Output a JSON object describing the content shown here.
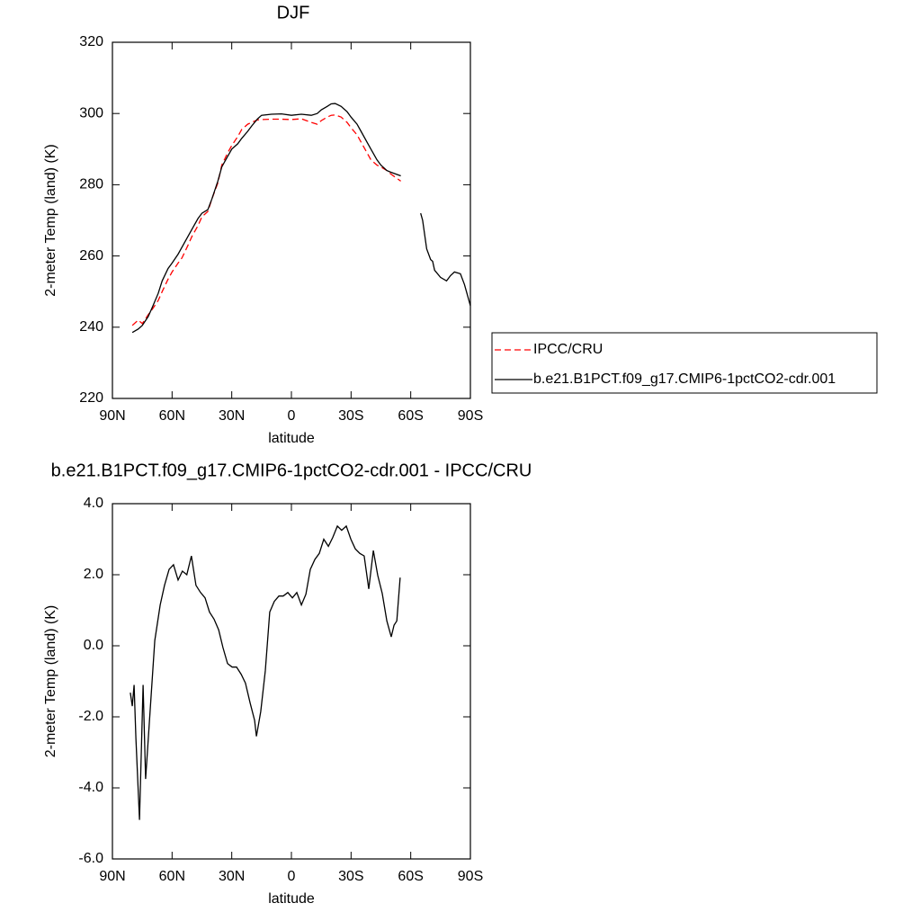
{
  "chart_data": [
    {
      "type": "line",
      "title": "DJF",
      "xlabel": "latitude",
      "ylabel": "2-meter Temp (land) (K)",
      "x": [
        80,
        77,
        75,
        72,
        70,
        67,
        65,
        62,
        60,
        57,
        55,
        52,
        50,
        47,
        45,
        42,
        40,
        37,
        35,
        32,
        30,
        27,
        25,
        22,
        20,
        17,
        15,
        10,
        5,
        0,
        -5,
        -10,
        -13,
        -15,
        -18,
        -20,
        -22,
        -25,
        -28,
        -30,
        -33,
        -35,
        -38,
        -40,
        -43,
        -45,
        -48,
        -50,
        -55,
        -60,
        -65,
        -66,
        -68,
        -70,
        -71,
        -72,
        -75,
        -78,
        -80,
        -82,
        -85,
        -87,
        -89,
        -90
      ],
      "series": [
        {
          "name": "IPCC/CRU",
          "color": "#ff0000",
          "line_style": "dashed",
          "values": [
            240.5,
            242,
            241,
            243.5,
            245,
            247.5,
            250,
            253.5,
            255.5,
            258,
            259.5,
            263,
            265.5,
            268.5,
            271,
            272.5,
            276,
            280.5,
            285.5,
            289,
            291,
            293.5,
            295.5,
            297,
            297.5,
            298.2,
            298.3,
            298.4,
            298.4,
            298.3,
            298.5,
            297.5,
            297,
            298,
            299,
            299.5,
            299.6,
            299,
            297.5,
            296,
            294,
            292,
            289,
            287,
            285.5,
            285,
            284,
            283,
            281,
            null,
            null,
            null,
            null,
            null,
            null,
            null,
            null,
            null,
            null,
            null,
            null,
            null,
            null,
            null
          ]
        },
        {
          "name": "b.e21.B1PCT.f09_g17.CMIP6-1pctCO2-cdr.001",
          "color": "#000000",
          "line_style": "solid",
          "values": [
            238.5,
            239.5,
            240.5,
            243,
            245.5,
            249.5,
            253,
            256.5,
            258,
            260.5,
            262.5,
            265.5,
            267.5,
            270.5,
            272,
            273,
            276,
            281,
            285,
            288,
            290,
            291.5,
            293,
            295,
            296.5,
            298.5,
            299.5,
            299.8,
            299.9,
            299.5,
            299.8,
            299.5,
            300,
            301,
            302,
            302.7,
            302.8,
            302,
            300.5,
            299,
            297,
            295,
            292,
            290,
            287,
            285.5,
            284,
            283.5,
            282.5,
            null,
            272,
            270,
            262,
            259,
            258.5,
            256,
            254,
            253,
            254.5,
            255.5,
            255,
            252,
            248,
            246
          ]
        }
      ],
      "xlim": [
        90,
        -90
      ],
      "xticks": [
        {
          "value": 90,
          "label": "90N"
        },
        {
          "value": 60,
          "label": "60N"
        },
        {
          "value": 30,
          "label": "30N"
        },
        0,
        {
          "value": -30,
          "label": "30S"
        },
        {
          "value": -60,
          "label": "60S"
        },
        {
          "value": -90,
          "label": "90S"
        }
      ],
      "ylim": [
        220,
        320
      ],
      "yticks": [
        220,
        240,
        260,
        280,
        300,
        320
      ],
      "legend": "right"
    },
    {
      "type": "line",
      "title": "b.e21.B1PCT.f09_g17.CMIP6-1pctCO2-cdr.001 - IPCC/CRU",
      "xlabel": "latitude",
      "ylabel": "2-meter Temp (land) (K)",
      "x": [
        81,
        80,
        79.1,
        78.2,
        76.4,
        74.6,
        73.3,
        71,
        68.7,
        66,
        63.8,
        61.5,
        59.3,
        57,
        54.8,
        52.6,
        50.3,
        48,
        45.7,
        43.4,
        41.2,
        38.9,
        36.6,
        34.4,
        32.1,
        29.8,
        27.6,
        25.3,
        23.1,
        20.8,
        18.5,
        17.6,
        15.4,
        13.1,
        10.9,
        8.6,
        6.3,
        4.1,
        1.8,
        -0.5,
        -2.7,
        -5,
        -7.3,
        -9.5,
        -11.8,
        -14,
        -16.3,
        -18.6,
        -20.8,
        -23.1,
        -25.3,
        -27.6,
        -29.9,
        -32.1,
        -34.4,
        -36.6,
        -38.9,
        -41.2,
        -43.4,
        -45.7,
        -48,
        -50.2,
        -51.6,
        -53,
        -54.7
      ],
      "values": [
        -1.32,
        -1.7,
        -1.1,
        -2.6,
        -4.9,
        -1.1,
        -3.75,
        -1.8,
        0.15,
        1.15,
        1.7,
        2.15,
        2.28,
        1.85,
        2.1,
        2.0,
        2.53,
        1.7,
        1.5,
        1.35,
        0.95,
        0.75,
        0.45,
        -0.05,
        -0.5,
        -0.6,
        -0.6,
        -0.8,
        -1.05,
        -1.6,
        -2.1,
        -2.55,
        -1.85,
        -0.7,
        0.95,
        1.25,
        1.4,
        1.4,
        1.5,
        1.35,
        1.5,
        1.15,
        1.45,
        2.15,
        2.43,
        2.6,
        3.0,
        2.8,
        3.05,
        3.37,
        3.25,
        3.37,
        3.0,
        2.73,
        2.6,
        2.53,
        1.6,
        2.68,
        1.98,
        1.47,
        0.7,
        0.25,
        0.58,
        0.7,
        1.92
      ],
      "color": "#000000",
      "xlim": [
        90,
        -90
      ],
      "xticks": [
        {
          "value": 90,
          "label": "90N"
        },
        {
          "value": 60,
          "label": "60N"
        },
        {
          "value": 30,
          "label": "30N"
        },
        0,
        {
          "value": -30,
          "label": "30S"
        },
        {
          "value": -60,
          "label": "60S"
        },
        {
          "value": -90,
          "label": "90S"
        }
      ],
      "ylim": [
        -6,
        4
      ],
      "yticks": [
        {
          "value": -6,
          "label": "-6.0"
        },
        {
          "value": -4,
          "label": "-4.0"
        },
        {
          "value": -2,
          "label": "-2.0"
        },
        {
          "value": 0,
          "label": "0.0"
        },
        {
          "value": 2,
          "label": "2.0"
        },
        {
          "value": 4,
          "label": "4.0"
        }
      ]
    }
  ]
}
